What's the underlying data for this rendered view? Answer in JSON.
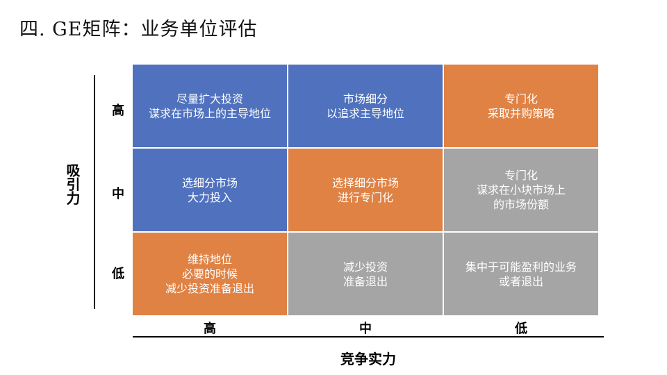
{
  "title": "四. GE矩阵：业务单位评估",
  "y_axis_label": "吸引力",
  "x_axis_label": "竞争实力",
  "row_labels": [
    "高",
    "中",
    "低"
  ],
  "col_labels": [
    "高",
    "中",
    "低"
  ],
  "colors": {
    "blue": "#4f71be",
    "orange": "#df8244",
    "gray": "#a5a5a5"
  },
  "cells": [
    {
      "text": "尽量扩大投资\n谋求在市场上的主导地位",
      "color": "blue"
    },
    {
      "text": "市场细分\n以追求主导地位",
      "color": "blue"
    },
    {
      "text": "专门化\n采取并购策略",
      "color": "orange"
    },
    {
      "text": "选细分市场\n大力投入",
      "color": "blue"
    },
    {
      "text": "选择细分市场\n进行专门化",
      "color": "orange"
    },
    {
      "text": "专门化\n谋求在小块市场上\n的市场份额",
      "color": "gray"
    },
    {
      "text": "维持地位\n必要的时候\n减少投资准备退出",
      "color": "orange"
    },
    {
      "text": "减少投资\n准备退出",
      "color": "gray"
    },
    {
      "text": "集中于可能盈利的业务\n或者退出",
      "color": "gray"
    }
  ]
}
